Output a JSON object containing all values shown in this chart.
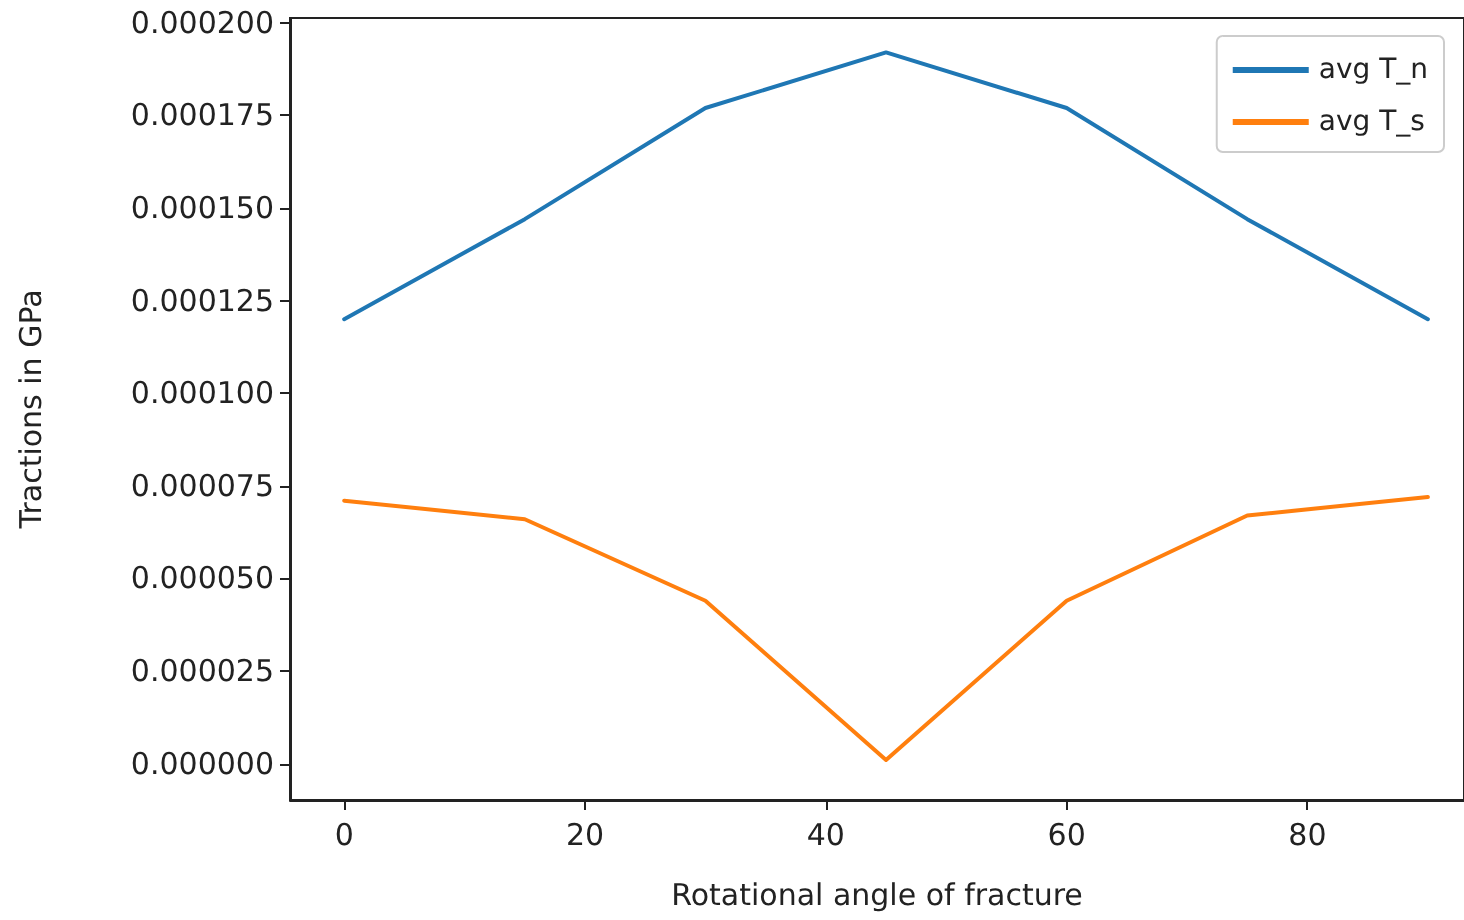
{
  "chart_data": {
    "type": "line",
    "xlabel": "Rotational angle of fracture",
    "ylabel": "Tractions in GPa",
    "x": [
      0,
      15,
      30,
      45,
      60,
      75,
      90
    ],
    "series": [
      {
        "name": "avg T_n",
        "color": "#1f77b4",
        "values": [
          0.00012,
          0.000147,
          0.000177,
          0.000192,
          0.000177,
          0.000147,
          0.00012
        ]
      },
      {
        "name": "avg T_s",
        "color": "#ff7f0e",
        "values": [
          7.1e-05,
          6.6e-05,
          4.4e-05,
          1e-06,
          4.4e-05,
          6.7e-05,
          7.2e-05
        ]
      }
    ],
    "xlim": [
      -4.5,
      93
    ],
    "xticks": [
      0,
      20,
      40,
      60,
      80
    ],
    "ylim": [
      -9.8e-06,
      0.0002013
    ],
    "yticks": [
      {
        "value": 0,
        "label": "0.000000"
      },
      {
        "value": 2.5e-05,
        "label": "0.000025"
      },
      {
        "value": 5e-05,
        "label": "0.000050"
      },
      {
        "value": 7.5e-05,
        "label": "0.000075"
      },
      {
        "value": 0.0001,
        "label": "0.000100"
      },
      {
        "value": 0.000125,
        "label": "0.000125"
      },
      {
        "value": 0.00015,
        "label": "0.000150"
      },
      {
        "value": 0.000175,
        "label": "0.000175"
      },
      {
        "value": 0.0002,
        "label": "0.000200"
      }
    ],
    "legend": "top right",
    "grid": false,
    "marker": "none",
    "line_style": "solid"
  }
}
